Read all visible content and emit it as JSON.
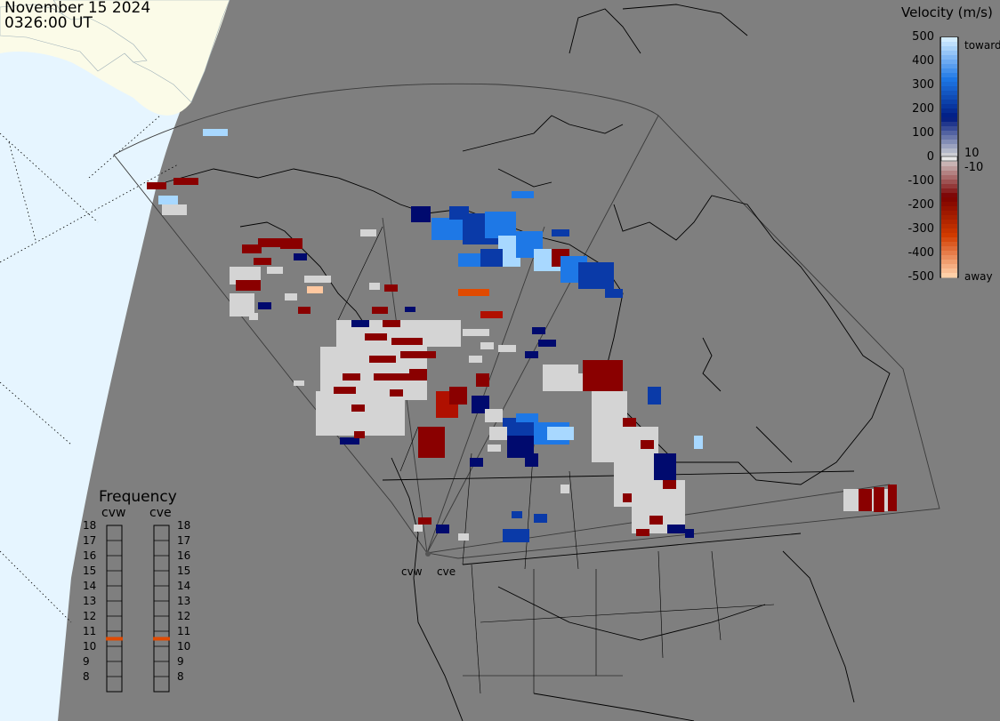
{
  "header": {
    "date": "November 15 2024",
    "time": "0326:00 UT"
  },
  "colorbar": {
    "title": "Velocity (m/s)",
    "ticks": [
      "500",
      "400",
      "300",
      "200",
      "100",
      "0",
      "-100",
      "-200",
      "-300",
      "-400",
      "-500"
    ],
    "toward_label": "toward",
    "away_label": "away",
    "near_zero_pos": "10",
    "near_zero_neg": "-10",
    "colors": {
      "toward_light": "#d2ecff",
      "toward_mid": "#1e78e6",
      "toward_dark": "#001a80",
      "zero": "#d8d8d8",
      "away_dark": "#7a0000",
      "away_mid": "#d23c00",
      "away_light": "#ffd0a8"
    }
  },
  "frequency": {
    "title": "Frequency",
    "radars": [
      "cvw",
      "cve"
    ],
    "scale": [
      "18",
      "17",
      "16",
      "15",
      "14",
      "13",
      "12",
      "11",
      "10",
      "9",
      "8"
    ],
    "current_mhz": {
      "cvw": 11,
      "cve": 11
    },
    "indicator_color": "#e04a00"
  },
  "radars": {
    "west": "cvw",
    "east": "cve"
  },
  "map_colors": {
    "land": "#7f7f7f",
    "sunlit_ocean": "#e6f5ff",
    "sunlit_land": "#fbfbe8",
    "ground_scatter": "#d4d4d4"
  }
}
